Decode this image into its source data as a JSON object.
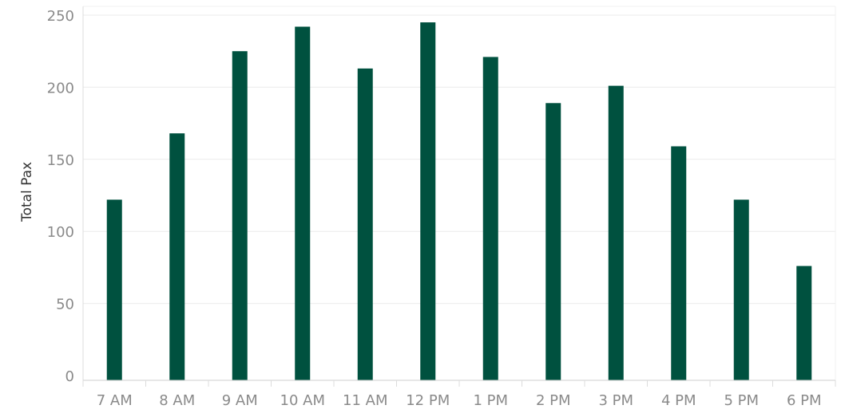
{
  "chart_data": {
    "type": "bar",
    "categories": [
      "7 AM",
      "8 AM",
      "9 AM",
      "10 AM",
      "11 AM",
      "12 PM",
      "1 PM",
      "2 PM",
      "3 PM",
      "4 PM",
      "5 PM",
      "6 PM"
    ],
    "values": [
      122,
      168,
      225,
      242,
      213,
      245,
      221,
      189,
      201,
      159,
      122,
      76
    ],
    "xlabel": "",
    "ylabel": "Total Pax",
    "ylim": [
      0,
      250
    ],
    "yticks": [
      0,
      50,
      100,
      150,
      200,
      250
    ],
    "grid": true,
    "legend": "none",
    "bar_color": "#00513F"
  }
}
